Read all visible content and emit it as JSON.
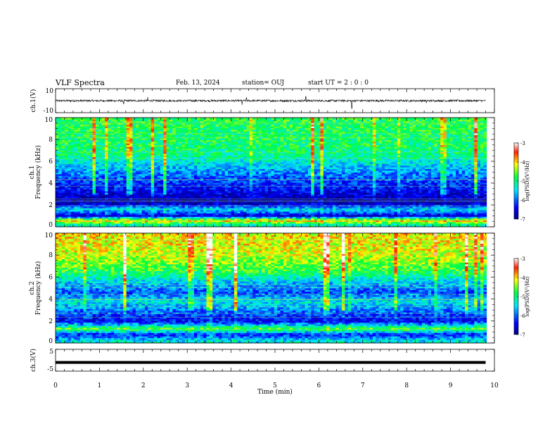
{
  "header": {
    "title": "VLF Spectra",
    "date": "Feb. 13, 2024",
    "station": "station= OUJ",
    "start": "start  UT =   2 : 0  : 0"
  },
  "chart_data": [
    {
      "type": "line",
      "ylabel": "ch.1(V)",
      "ylim": [
        -10,
        10
      ],
      "yticks": [
        "10",
        "-10"
      ],
      "xlim": [
        0,
        10
      ],
      "baseline": 0,
      "spikes": [
        {
          "x": 1.55,
          "y": -2.5
        },
        {
          "x": 2.1,
          "y": 3.0
        },
        {
          "x": 4.25,
          "y": -3.5
        },
        {
          "x": 4.35,
          "y": 2.5
        },
        {
          "x": 5.7,
          "y": 3.5
        },
        {
          "x": 6.75,
          "y": -6.5
        },
        {
          "x": 8.45,
          "y": -2.0
        }
      ]
    },
    {
      "type": "heatmap",
      "ylabel": "ch.1\nFrequency (kHz)",
      "xlim": [
        0,
        10
      ],
      "ylim": [
        0,
        10
      ],
      "yticks": [
        "0",
        "2",
        "4",
        "6",
        "8",
        "10"
      ],
      "colorbar": {
        "ticks": [
          "-3",
          "-4",
          "-5",
          "-6",
          "-7"
        ],
        "label": "log(PSD)(V²/Hz)",
        "range": [
          -7,
          -3
        ]
      },
      "profile": [
        {
          "f": 0.2,
          "v": -5.2
        },
        {
          "f": 0.6,
          "v": -3.9
        },
        {
          "f": 1.0,
          "v": -6.7
        },
        {
          "f": 1.6,
          "v": -5.4
        },
        {
          "f": 2.2,
          "v": -6.9
        },
        {
          "f": 3.0,
          "v": -6.6
        },
        {
          "f": 3.8,
          "v": -6.3
        },
        {
          "f": 4.6,
          "v": -6.0
        },
        {
          "f": 5.5,
          "v": -5.6
        },
        {
          "f": 6.5,
          "v": -5.1
        },
        {
          "f": 7.5,
          "v": -4.9
        },
        {
          "f": 8.5,
          "v": -4.9
        },
        {
          "f": 9.5,
          "v": -4.8
        }
      ]
    },
    {
      "type": "heatmap",
      "ylabel": "ch.2\nFrequency (kHz)",
      "xlim": [
        0,
        10
      ],
      "ylim": [
        0,
        10
      ],
      "yticks": [
        "0",
        "2",
        "4",
        "6",
        "8",
        "10"
      ],
      "colorbar": {
        "ticks": [
          "-3",
          "-4",
          "-5",
          "-6",
          "-7"
        ],
        "label": "log(PSD)(V²/Hz)",
        "range": [
          -7,
          -3
        ]
      },
      "profile": [
        {
          "f": 0.2,
          "v": -5.4
        },
        {
          "f": 0.8,
          "v": -6.3
        },
        {
          "f": 1.3,
          "v": -4.6
        },
        {
          "f": 2.0,
          "v": -6.5
        },
        {
          "f": 3.0,
          "v": -5.9
        },
        {
          "f": 3.8,
          "v": -5.4
        },
        {
          "f": 4.6,
          "v": -6.1
        },
        {
          "f": 5.5,
          "v": -5.6
        },
        {
          "f": 6.5,
          "v": -4.8
        },
        {
          "f": 7.5,
          "v": -4.4
        },
        {
          "f": 8.5,
          "v": -4.2
        },
        {
          "f": 9.5,
          "v": -4.1
        }
      ]
    },
    {
      "type": "line",
      "ylabel": "ch.3(V)",
      "ylim": [
        -5,
        5
      ],
      "yticks": [
        "5",
        "-5"
      ],
      "xlim": [
        0,
        10
      ],
      "baseline": -1.0,
      "xlabel": "Time (min)",
      "xticks": [
        "0",
        "1",
        "2",
        "3",
        "4",
        "5",
        "6",
        "7",
        "8",
        "9",
        "10"
      ]
    }
  ]
}
